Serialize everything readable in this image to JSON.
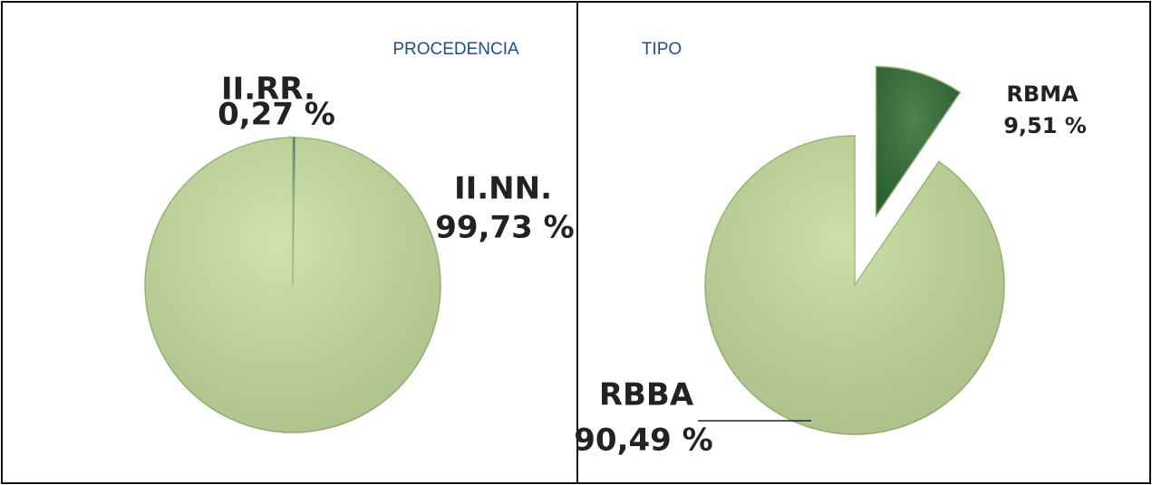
{
  "chart_data": [
    {
      "type": "pie",
      "title": "PROCEDENCIA",
      "categories": [
        "II.RR.",
        "II.NN."
      ],
      "values": [
        0.27,
        99.73
      ],
      "value_labels": [
        "0,27 %",
        "99,73 %"
      ],
      "colors": [
        "#1f4e9a",
        "#c6de9f"
      ],
      "exploded": [
        false,
        false
      ]
    },
    {
      "type": "pie",
      "title": "TIPO",
      "categories": [
        "RBMA",
        "RBBA"
      ],
      "values": [
        9.51,
        90.49
      ],
      "value_labels": [
        "9,51 %",
        "90,49 %"
      ],
      "colors": [
        "#2f6b34",
        "#c2db9b"
      ],
      "exploded": [
        true,
        false
      ]
    }
  ]
}
